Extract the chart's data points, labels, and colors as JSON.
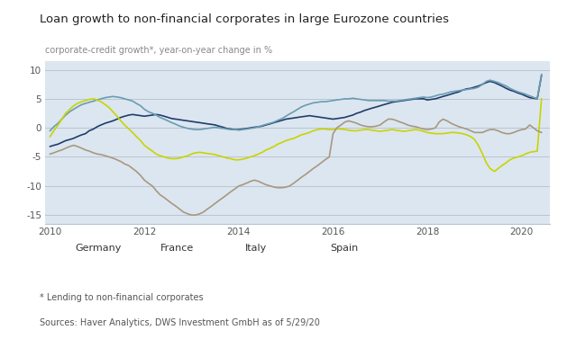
{
  "title": "Loan growth to non-financial corporates in large Eurozone countries",
  "subtitle": "corporate-credit growth*, year-on-year change in %",
  "footnote": "* Lending to non-financial corporates",
  "source": "Sources: Haver Analytics, DWS Investment GmbH as of 5/29/20",
  "xlim": [
    2009.9,
    2020.6
  ],
  "ylim": [
    -16.5,
    11.5
  ],
  "yticks": [
    -15,
    -10,
    -5,
    0,
    5,
    10
  ],
  "xticks": [
    2010,
    2012,
    2014,
    2016,
    2018,
    2020
  ],
  "bg_color": "#dce6f0",
  "outer_bg": "#ffffff",
  "legend_labels": [
    "Germany",
    "France",
    "Italy",
    "Spain"
  ],
  "colors": {
    "Germany": "#1f3d6b",
    "France": "#6a9cb0",
    "Italy": "#c8d400",
    "Spain": "#a89880"
  },
  "Germany": {
    "x": [
      2010.0,
      2010.08,
      2010.17,
      2010.25,
      2010.33,
      2010.42,
      2010.5,
      2010.58,
      2010.67,
      2010.75,
      2010.83,
      2010.92,
      2011.0,
      2011.08,
      2011.17,
      2011.25,
      2011.33,
      2011.42,
      2011.5,
      2011.58,
      2011.67,
      2011.75,
      2011.83,
      2011.92,
      2012.0,
      2012.08,
      2012.17,
      2012.25,
      2012.33,
      2012.42,
      2012.5,
      2012.58,
      2012.67,
      2012.75,
      2012.83,
      2012.92,
      2013.0,
      2013.08,
      2013.17,
      2013.25,
      2013.33,
      2013.42,
      2013.5,
      2013.58,
      2013.67,
      2013.75,
      2013.83,
      2013.92,
      2014.0,
      2014.08,
      2014.17,
      2014.25,
      2014.33,
      2014.42,
      2014.5,
      2014.58,
      2014.67,
      2014.75,
      2014.83,
      2014.92,
      2015.0,
      2015.08,
      2015.17,
      2015.25,
      2015.33,
      2015.42,
      2015.5,
      2015.58,
      2015.67,
      2015.75,
      2015.83,
      2015.92,
      2016.0,
      2016.08,
      2016.17,
      2016.25,
      2016.33,
      2016.42,
      2016.5,
      2016.58,
      2016.67,
      2016.75,
      2016.83,
      2016.92,
      2017.0,
      2017.08,
      2017.17,
      2017.25,
      2017.33,
      2017.42,
      2017.5,
      2017.58,
      2017.67,
      2017.75,
      2017.83,
      2017.92,
      2018.0,
      2018.08,
      2018.17,
      2018.25,
      2018.33,
      2018.42,
      2018.5,
      2018.58,
      2018.67,
      2018.75,
      2018.83,
      2018.92,
      2019.0,
      2019.08,
      2019.17,
      2019.25,
      2019.33,
      2019.42,
      2019.5,
      2019.58,
      2019.67,
      2019.75,
      2019.83,
      2019.92,
      2020.0,
      2020.08,
      2020.17,
      2020.33,
      2020.42
    ],
    "y": [
      -3.2,
      -3.0,
      -2.8,
      -2.5,
      -2.2,
      -2.0,
      -1.8,
      -1.5,
      -1.2,
      -1.0,
      -0.5,
      -0.2,
      0.2,
      0.5,
      0.8,
      1.0,
      1.2,
      1.5,
      1.8,
      2.0,
      2.2,
      2.3,
      2.2,
      2.1,
      2.0,
      2.1,
      2.2,
      2.3,
      2.2,
      2.0,
      1.8,
      1.6,
      1.5,
      1.4,
      1.3,
      1.2,
      1.1,
      1.0,
      0.9,
      0.8,
      0.7,
      0.6,
      0.5,
      0.3,
      0.1,
      -0.1,
      -0.2,
      -0.3,
      -0.3,
      -0.2,
      -0.1,
      0.0,
      0.1,
      0.2,
      0.3,
      0.5,
      0.7,
      0.9,
      1.1,
      1.3,
      1.5,
      1.6,
      1.7,
      1.8,
      1.9,
      2.0,
      2.1,
      2.0,
      1.9,
      1.8,
      1.7,
      1.6,
      1.5,
      1.6,
      1.7,
      1.8,
      2.0,
      2.2,
      2.5,
      2.7,
      3.0,
      3.2,
      3.4,
      3.6,
      3.8,
      4.0,
      4.2,
      4.4,
      4.5,
      4.6,
      4.7,
      4.8,
      4.9,
      5.0,
      5.0,
      5.0,
      4.8,
      4.9,
      5.0,
      5.2,
      5.4,
      5.6,
      5.8,
      6.0,
      6.2,
      6.5,
      6.7,
      6.8,
      7.0,
      7.2,
      7.5,
      7.8,
      8.0,
      7.8,
      7.5,
      7.2,
      6.8,
      6.5,
      6.3,
      6.0,
      5.8,
      5.5,
      5.2,
      5.0,
      9.0
    ]
  },
  "France": {
    "x": [
      2010.0,
      2010.08,
      2010.17,
      2010.25,
      2010.33,
      2010.42,
      2010.5,
      2010.58,
      2010.67,
      2010.75,
      2010.83,
      2010.92,
      2011.0,
      2011.08,
      2011.17,
      2011.25,
      2011.33,
      2011.42,
      2011.5,
      2011.58,
      2011.67,
      2011.75,
      2011.83,
      2011.92,
      2012.0,
      2012.08,
      2012.17,
      2012.25,
      2012.33,
      2012.42,
      2012.5,
      2012.58,
      2012.67,
      2012.75,
      2012.83,
      2012.92,
      2013.0,
      2013.08,
      2013.17,
      2013.25,
      2013.33,
      2013.42,
      2013.5,
      2013.58,
      2013.67,
      2013.75,
      2013.83,
      2013.92,
      2014.0,
      2014.08,
      2014.17,
      2014.25,
      2014.33,
      2014.42,
      2014.5,
      2014.58,
      2014.67,
      2014.75,
      2014.83,
      2014.92,
      2015.0,
      2015.08,
      2015.17,
      2015.25,
      2015.33,
      2015.42,
      2015.5,
      2015.58,
      2015.67,
      2015.75,
      2015.83,
      2015.92,
      2016.0,
      2016.08,
      2016.17,
      2016.25,
      2016.33,
      2016.42,
      2016.5,
      2016.58,
      2016.67,
      2016.75,
      2016.83,
      2016.92,
      2017.0,
      2017.08,
      2017.17,
      2017.25,
      2017.33,
      2017.42,
      2017.5,
      2017.58,
      2017.67,
      2017.75,
      2017.83,
      2017.92,
      2018.0,
      2018.08,
      2018.17,
      2018.25,
      2018.33,
      2018.42,
      2018.5,
      2018.58,
      2018.67,
      2018.75,
      2018.83,
      2018.92,
      2019.0,
      2019.08,
      2019.17,
      2019.25,
      2019.33,
      2019.42,
      2019.5,
      2019.58,
      2019.67,
      2019.75,
      2019.83,
      2019.92,
      2020.0,
      2020.08,
      2020.17,
      2020.33,
      2020.42
    ],
    "y": [
      -0.5,
      0.2,
      0.8,
      1.5,
      2.2,
      2.8,
      3.2,
      3.6,
      4.0,
      4.2,
      4.4,
      4.6,
      4.8,
      5.0,
      5.2,
      5.3,
      5.4,
      5.3,
      5.2,
      5.0,
      4.8,
      4.6,
      4.2,
      3.8,
      3.2,
      2.8,
      2.5,
      2.2,
      1.8,
      1.5,
      1.2,
      0.9,
      0.6,
      0.3,
      0.1,
      -0.1,
      -0.2,
      -0.3,
      -0.3,
      -0.2,
      -0.1,
      0.0,
      0.1,
      0.0,
      -0.1,
      -0.2,
      -0.3,
      -0.3,
      -0.4,
      -0.3,
      -0.2,
      -0.1,
      0.0,
      0.2,
      0.4,
      0.6,
      0.8,
      1.0,
      1.3,
      1.6,
      2.0,
      2.4,
      2.8,
      3.2,
      3.6,
      3.9,
      4.1,
      4.3,
      4.4,
      4.5,
      4.5,
      4.6,
      4.7,
      4.8,
      4.9,
      5.0,
      5.0,
      5.1,
      5.0,
      4.9,
      4.8,
      4.7,
      4.7,
      4.7,
      4.7,
      4.7,
      4.6,
      4.6,
      4.6,
      4.7,
      4.8,
      4.9,
      5.0,
      5.1,
      5.2,
      5.3,
      5.2,
      5.3,
      5.5,
      5.7,
      5.8,
      6.0,
      6.2,
      6.3,
      6.4,
      6.5,
      6.6,
      6.7,
      6.8,
      7.0,
      7.5,
      8.0,
      8.2,
      8.0,
      7.8,
      7.5,
      7.2,
      6.8,
      6.5,
      6.2,
      6.0,
      5.8,
      5.5,
      5.0,
      9.2
    ]
  },
  "Italy": {
    "x": [
      2010.0,
      2010.08,
      2010.17,
      2010.25,
      2010.33,
      2010.42,
      2010.5,
      2010.58,
      2010.67,
      2010.75,
      2010.83,
      2010.92,
      2011.0,
      2011.08,
      2011.17,
      2011.25,
      2011.33,
      2011.42,
      2011.5,
      2011.58,
      2011.67,
      2011.75,
      2011.83,
      2011.92,
      2012.0,
      2012.08,
      2012.17,
      2012.25,
      2012.33,
      2012.42,
      2012.5,
      2012.58,
      2012.67,
      2012.75,
      2012.83,
      2012.92,
      2013.0,
      2013.08,
      2013.17,
      2013.25,
      2013.33,
      2013.42,
      2013.5,
      2013.58,
      2013.67,
      2013.75,
      2013.83,
      2013.92,
      2014.0,
      2014.08,
      2014.17,
      2014.25,
      2014.33,
      2014.42,
      2014.5,
      2014.58,
      2014.67,
      2014.75,
      2014.83,
      2014.92,
      2015.0,
      2015.08,
      2015.17,
      2015.25,
      2015.33,
      2015.42,
      2015.5,
      2015.58,
      2015.67,
      2015.75,
      2015.83,
      2015.92,
      2016.0,
      2016.08,
      2016.17,
      2016.25,
      2016.33,
      2016.42,
      2016.5,
      2016.58,
      2016.67,
      2016.75,
      2016.83,
      2016.92,
      2017.0,
      2017.08,
      2017.17,
      2017.25,
      2017.33,
      2017.42,
      2017.5,
      2017.58,
      2017.67,
      2017.75,
      2017.83,
      2017.92,
      2018.0,
      2018.08,
      2018.17,
      2018.25,
      2018.33,
      2018.42,
      2018.5,
      2018.58,
      2018.67,
      2018.75,
      2018.83,
      2018.92,
      2019.0,
      2019.08,
      2019.17,
      2019.25,
      2019.33,
      2019.42,
      2019.5,
      2019.58,
      2019.67,
      2019.75,
      2019.83,
      2019.92,
      2020.0,
      2020.08,
      2020.17,
      2020.33,
      2020.42
    ],
    "y": [
      -1.5,
      -0.5,
      0.5,
      1.5,
      2.5,
      3.2,
      3.8,
      4.2,
      4.5,
      4.7,
      4.9,
      5.0,
      4.8,
      4.5,
      4.0,
      3.5,
      2.8,
      2.0,
      1.2,
      0.5,
      -0.2,
      -0.8,
      -1.5,
      -2.2,
      -3.0,
      -3.5,
      -4.0,
      -4.5,
      -4.8,
      -5.0,
      -5.2,
      -5.3,
      -5.3,
      -5.2,
      -5.0,
      -4.8,
      -4.5,
      -4.3,
      -4.2,
      -4.3,
      -4.4,
      -4.5,
      -4.6,
      -4.8,
      -5.0,
      -5.2,
      -5.3,
      -5.5,
      -5.5,
      -5.4,
      -5.2,
      -5.0,
      -4.8,
      -4.5,
      -4.2,
      -3.8,
      -3.5,
      -3.2,
      -2.8,
      -2.5,
      -2.2,
      -2.0,
      -1.8,
      -1.5,
      -1.2,
      -1.0,
      -0.8,
      -0.5,
      -0.3,
      -0.2,
      -0.2,
      -0.3,
      -0.3,
      -0.2,
      -0.2,
      -0.3,
      -0.4,
      -0.5,
      -0.5,
      -0.4,
      -0.3,
      -0.3,
      -0.4,
      -0.5,
      -0.6,
      -0.5,
      -0.4,
      -0.3,
      -0.4,
      -0.5,
      -0.6,
      -0.5,
      -0.4,
      -0.3,
      -0.4,
      -0.6,
      -0.8,
      -0.9,
      -1.0,
      -1.0,
      -1.0,
      -0.9,
      -0.8,
      -0.8,
      -0.9,
      -1.0,
      -1.2,
      -1.5,
      -2.0,
      -3.0,
      -4.5,
      -6.0,
      -7.0,
      -7.5,
      -7.0,
      -6.5,
      -6.0,
      -5.5,
      -5.2,
      -5.0,
      -4.8,
      -4.5,
      -4.2,
      -4.0,
      5.0
    ]
  },
  "Spain": {
    "x": [
      2010.0,
      2010.08,
      2010.17,
      2010.25,
      2010.33,
      2010.42,
      2010.5,
      2010.58,
      2010.67,
      2010.75,
      2010.83,
      2010.92,
      2011.0,
      2011.08,
      2011.17,
      2011.25,
      2011.33,
      2011.42,
      2011.5,
      2011.58,
      2011.67,
      2011.75,
      2011.83,
      2011.92,
      2012.0,
      2012.08,
      2012.17,
      2012.25,
      2012.33,
      2012.42,
      2012.5,
      2012.58,
      2012.67,
      2012.75,
      2012.83,
      2012.92,
      2013.0,
      2013.08,
      2013.17,
      2013.25,
      2013.33,
      2013.42,
      2013.5,
      2013.58,
      2013.67,
      2013.75,
      2013.83,
      2013.92,
      2014.0,
      2014.08,
      2014.17,
      2014.25,
      2014.33,
      2014.42,
      2014.5,
      2014.58,
      2014.67,
      2014.75,
      2014.83,
      2014.92,
      2015.0,
      2015.08,
      2015.17,
      2015.25,
      2015.33,
      2015.42,
      2015.5,
      2015.58,
      2015.67,
      2015.75,
      2015.83,
      2015.92,
      2016.0,
      2016.08,
      2016.17,
      2016.25,
      2016.33,
      2016.42,
      2016.5,
      2016.58,
      2016.67,
      2016.75,
      2016.83,
      2016.92,
      2017.0,
      2017.08,
      2017.17,
      2017.25,
      2017.33,
      2017.42,
      2017.5,
      2017.58,
      2017.67,
      2017.75,
      2017.83,
      2017.92,
      2018.0,
      2018.08,
      2018.17,
      2018.25,
      2018.33,
      2018.42,
      2018.5,
      2018.58,
      2018.67,
      2018.75,
      2018.83,
      2018.92,
      2019.0,
      2019.08,
      2019.17,
      2019.25,
      2019.33,
      2019.42,
      2019.5,
      2019.58,
      2019.67,
      2019.75,
      2019.83,
      2019.92,
      2020.0,
      2020.08,
      2020.17,
      2020.33,
      2020.42
    ],
    "y": [
      -4.5,
      -4.3,
      -4.0,
      -3.8,
      -3.5,
      -3.2,
      -3.0,
      -3.2,
      -3.5,
      -3.8,
      -4.0,
      -4.3,
      -4.5,
      -4.6,
      -4.8,
      -5.0,
      -5.2,
      -5.5,
      -5.8,
      -6.2,
      -6.5,
      -7.0,
      -7.5,
      -8.2,
      -9.0,
      -9.5,
      -10.0,
      -10.8,
      -11.5,
      -12.0,
      -12.5,
      -13.0,
      -13.5,
      -14.0,
      -14.5,
      -14.8,
      -15.0,
      -15.0,
      -14.8,
      -14.5,
      -14.0,
      -13.5,
      -13.0,
      -12.5,
      -12.0,
      -11.5,
      -11.0,
      -10.5,
      -10.0,
      -9.8,
      -9.5,
      -9.2,
      -9.0,
      -9.2,
      -9.5,
      -9.8,
      -10.0,
      -10.2,
      -10.3,
      -10.3,
      -10.2,
      -10.0,
      -9.5,
      -9.0,
      -8.5,
      -8.0,
      -7.5,
      -7.0,
      -6.5,
      -6.0,
      -5.5,
      -5.0,
      -1.0,
      0.0,
      0.5,
      1.0,
      1.2,
      1.0,
      0.8,
      0.5,
      0.3,
      0.2,
      0.2,
      0.3,
      0.5,
      1.0,
      1.5,
      1.5,
      1.3,
      1.0,
      0.8,
      0.5,
      0.3,
      0.2,
      0.0,
      -0.2,
      -0.3,
      -0.2,
      0.0,
      1.0,
      1.5,
      1.2,
      0.8,
      0.5,
      0.2,
      0.0,
      -0.2,
      -0.5,
      -0.8,
      -0.8,
      -0.8,
      -0.5,
      -0.3,
      -0.3,
      -0.5,
      -0.8,
      -1.0,
      -1.0,
      -0.8,
      -0.5,
      -0.3,
      -0.2,
      0.5,
      -0.5,
      -0.8
    ]
  }
}
